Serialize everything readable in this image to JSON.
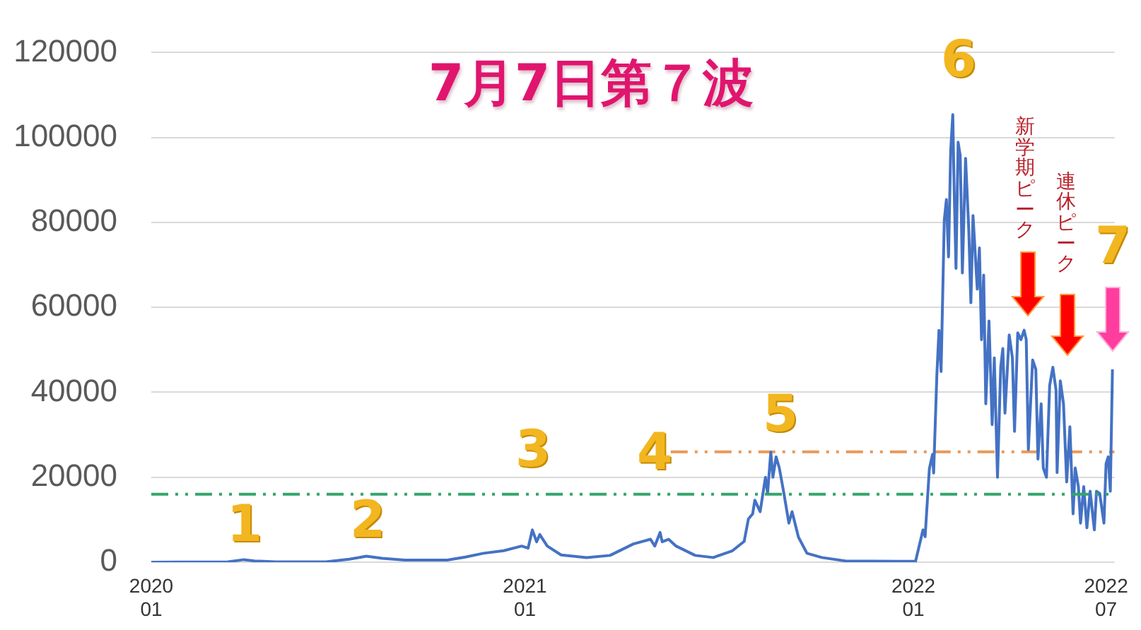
{
  "chart_data": {
    "type": "line",
    "title": "7月7日第７波",
    "x": [
      "2020-01-16",
      "2020-03-28",
      "2020-04-12",
      "2020-04-22",
      "2020-05-12",
      "2020-06-28",
      "2020-07-20",
      "2020-08-05",
      "2020-08-20",
      "2020-09-10",
      "2020-10-20",
      "2020-11-06",
      "2020-11-23",
      "2020-12-12",
      "2020-12-29",
      "2021-01-04",
      "2021-01-08",
      "2021-01-12",
      "2021-01-15",
      "2021-01-22",
      "2021-02-04",
      "2021-02-28",
      "2021-03-22",
      "2021-04-13",
      "2021-04-29",
      "2021-05-03",
      "2021-05-08",
      "2021-05-10",
      "2021-05-16",
      "2021-05-23",
      "2021-06-10",
      "2021-06-27",
      "2021-07-15",
      "2021-07-26",
      "2021-07-30",
      "2021-08-03",
      "2021-08-05",
      "2021-08-10",
      "2021-08-15",
      "2021-08-17",
      "2021-08-20",
      "2021-08-22",
      "2021-08-25",
      "2021-08-28",
      "2021-09-01",
      "2021-09-06",
      "2021-09-09",
      "2021-09-15",
      "2021-09-23",
      "2021-10-07",
      "2021-10-29",
      "2022-01-03",
      "2022-01-10",
      "2022-01-12",
      "2022-01-16",
      "2022-01-19",
      "2022-01-20",
      "2022-01-23",
      "2022-01-25",
      "2022-01-27",
      "2022-01-30",
      "2022-02-01",
      "2022-02-03",
      "2022-02-05",
      "2022-02-07",
      "2022-02-08",
      "2022-02-10",
      "2022-02-12",
      "2022-02-14",
      "2022-02-16",
      "2022-02-19",
      "2022-02-22",
      "2022-02-24",
      "2022-02-26",
      "2022-03-02",
      "2022-03-04",
      "2022-03-06",
      "2022-03-08",
      "2022-03-10",
      "2022-03-13",
      "2022-03-16",
      "2022-03-18",
      "2022-03-21",
      "2022-03-24",
      "2022-03-26",
      "2022-03-28",
      "2022-04-01",
      "2022-04-04",
      "2022-04-06",
      "2022-04-09",
      "2022-04-12",
      "2022-04-15",
      "2022-04-17",
      "2022-04-19",
      "2022-04-23",
      "2022-04-26",
      "2022-04-28",
      "2022-05-01",
      "2022-05-03",
      "2022-05-06",
      "2022-05-09",
      "2022-05-12",
      "2022-05-15",
      "2022-05-16",
      "2022-05-19",
      "2022-05-22",
      "2022-05-25",
      "2022-05-28",
      "2022-05-31",
      "2022-06-02",
      "2022-06-05",
      "2022-06-07",
      "2022-06-10",
      "2022-06-13",
      "2022-06-16",
      "2022-06-20",
      "2022-06-22",
      "2022-06-25",
      "2022-06-29",
      "2022-07-01",
      "2022-07-03",
      "2022-07-05",
      "2022-07-07"
    ],
    "series": [
      {
        "color": "#4472c4",
        "values": [
          0,
          100,
          600,
          300,
          100,
          100,
          700,
          1400,
          900,
          500,
          500,
          1200,
          2100,
          2700,
          3800,
          3300,
          7600,
          4800,
          6500,
          3800,
          1700,
          1100,
          1600,
          4300,
          5400,
          3800,
          7000,
          4800,
          5400,
          3800,
          1600,
          1100,
          2700,
          4900,
          10200,
          11400,
          14600,
          11900,
          20000,
          16200,
          25900,
          20000,
          24800,
          22200,
          16700,
          9200,
          11900,
          5900,
          2100,
          1100,
          300,
          200,
          7600,
          6000,
          22000,
          25400,
          21000,
          43900,
          54600,
          44900,
          80500,
          85400,
          71900,
          96800,
          105400,
          91300,
          69200,
          98900,
          95700,
          68100,
          95100,
          78400,
          61100,
          81600,
          64300,
          74000,
          52400,
          67600,
          37300,
          56800,
          32400,
          48100,
          20000,
          45900,
          50300,
          35100,
          53500,
          48100,
          30800,
          54000,
          52400,
          54600,
          52400,
          26500,
          47600,
          45400,
          24300,
          37300,
          22200,
          20000,
          41600,
          45900,
          40500,
          21100,
          42700,
          37300,
          18900,
          31900,
          11400,
          22200,
          17800,
          9200,
          17800,
          8100,
          16700,
          7600,
          16700,
          16200,
          9200,
          23200,
          24800,
          16700,
          45400
        ]
      },
      {
        "color": "#e8995a",
        "line_style": "dashed",
        "x": [
          "2021-05-18",
          "2022-07-09"
        ],
        "values": [
          26000,
          26000
        ]
      }
    ],
    "ref_lines": [
      {
        "axis": "y",
        "value": 16000,
        "color": "#33a66a",
        "line_style": "dashed"
      }
    ],
    "xlim": [
      "2020-01-16",
      "2022-07-09"
    ],
    "xticks": [
      {
        "value": "2020-01-16",
        "label": "2020\n01"
      },
      {
        "value": "2021-01-01",
        "label": "2021\n01"
      },
      {
        "value": "2022-01-01",
        "label": "2022\n01"
      },
      {
        "value": "2022-07-01",
        "label": "2022\n07"
      }
    ],
    "ylim": [
      0,
      120000
    ],
    "yticks": [
      0,
      20000,
      40000,
      60000,
      80000,
      100000,
      120000
    ],
    "grid": "y",
    "annotations": [
      "1",
      "2",
      "3",
      "4",
      "5",
      "6",
      "7",
      "新学期ピーク",
      "連休ピーク"
    ]
  }
}
